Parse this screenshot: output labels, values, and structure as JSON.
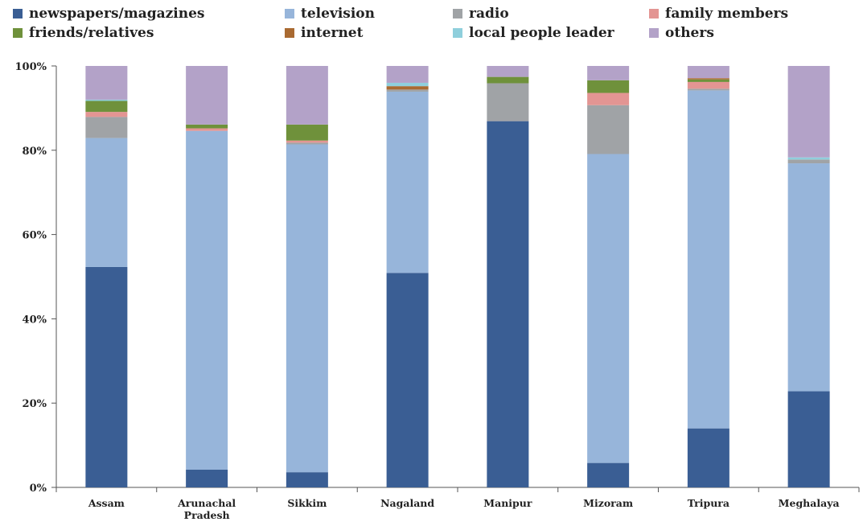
{
  "chart_data": {
    "type": "bar",
    "stacked": true,
    "percent": true,
    "categories": [
      [
        "Assam"
      ],
      [
        "Arunachal",
        "Pradesh"
      ],
      [
        "Sikkim"
      ],
      [
        "Nagaland"
      ],
      [
        "Manipur"
      ],
      [
        "Mizoram"
      ],
      [
        "Tripura"
      ],
      [
        "Meghalaya"
      ]
    ],
    "yticks": [
      "0%",
      "20%",
      "40%",
      "60%",
      "80%",
      "100%"
    ],
    "ylim": [
      0,
      100
    ],
    "legend_placement": "top",
    "series": [
      {
        "name": "newspapers/magazines",
        "color": "#3a5e94",
        "values": [
          52.3,
          4.2,
          3.6,
          50.9,
          86.9,
          5.8,
          14.0,
          22.8
        ]
      },
      {
        "name": "television",
        "color": "#97b5da",
        "values": [
          30.6,
          80.4,
          77.8,
          43.0,
          0.0,
          73.3,
          80.2,
          54.1
        ]
      },
      {
        "name": "radio",
        "color": "#a0a3a6",
        "values": [
          5.0,
          0.0,
          0.4,
          0.5,
          9.0,
          11.6,
          0.4,
          0.9
        ]
      },
      {
        "name": "family members",
        "color": "#e39593",
        "values": [
          1.2,
          0.6,
          0.5,
          0.0,
          0.0,
          2.9,
          1.6,
          0.0
        ]
      },
      {
        "name": "friends/relatives",
        "color": "#6f913b",
        "values": [
          2.6,
          0.9,
          3.8,
          0.0,
          1.5,
          3.0,
          0.6,
          0.0
        ]
      },
      {
        "name": "internet",
        "color": "#a96a31",
        "values": [
          0.0,
          0.0,
          0.0,
          0.8,
          0.0,
          0.0,
          0.3,
          0.0
        ]
      },
      {
        "name": "local people leader",
        "color": "#8fcfdc",
        "values": [
          0.3,
          0.0,
          0.0,
          0.8,
          0.0,
          0.0,
          0.0,
          0.5
        ]
      },
      {
        "name": "others",
        "color": "#b3a2c8",
        "values": [
          8.0,
          13.9,
          13.9,
          4.0,
          2.6,
          3.4,
          2.9,
          21.7
        ]
      }
    ]
  }
}
